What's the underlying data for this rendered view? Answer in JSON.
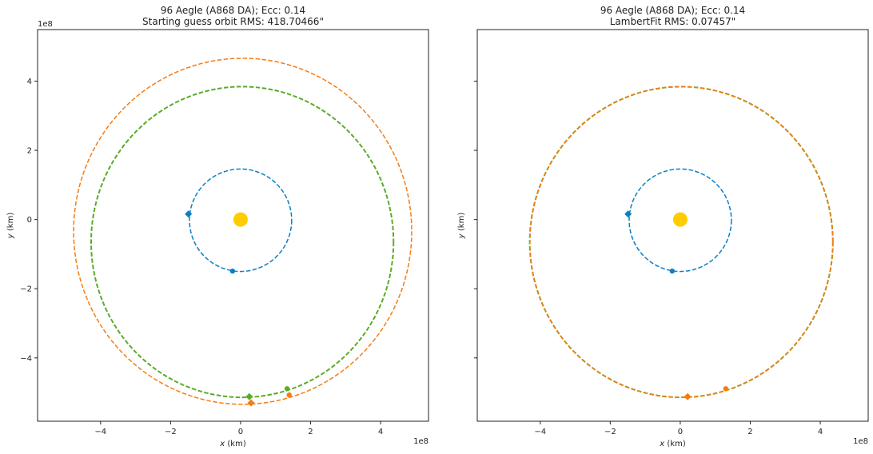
{
  "chart_data": [
    {
      "type": "scatter",
      "title_line1": "96 Aegle (A868 DA); Ecc: 0.14",
      "title_line2": "Starting guess orbit RMS: 418.70466\"",
      "xlabel": "x (km)",
      "ylabel": "y (km)",
      "x_offset_label": "1e8",
      "y_offset_label": "1e8",
      "xlim": [
        -5.8,
        5.37
      ],
      "ylim": [
        -5.83,
        5.49
      ],
      "xticks": [
        -4,
        -2,
        0,
        2,
        4
      ],
      "yticks": [
        -4,
        -2,
        0,
        2,
        4
      ],
      "xtick_labels": [
        "−4",
        "−2",
        "0",
        "2",
        "4"
      ],
      "ytick_labels": [
        "−4",
        "−2",
        "0",
        "2",
        "4"
      ],
      "show_ytick_labels": true,
      "sun": {
        "x": 0,
        "y": 0,
        "color": "#ffcc00"
      },
      "orbits": [
        {
          "name": "earth-orbit",
          "cx": 0,
          "cy": -0.02,
          "rx": 1.46,
          "ry": 1.48,
          "color": "#0a7fc2",
          "width": 1.5
        },
        {
          "name": "orbit-green",
          "cx": 0.05,
          "cy": -0.65,
          "rx": 4.32,
          "ry": 4.49,
          "color": "#5aab2a",
          "width": 2
        },
        {
          "name": "orbit-orange",
          "cx": 0.06,
          "cy": -0.34,
          "rx": 4.83,
          "ry": 5.0,
          "color": "#f77b12",
          "width": 1.5
        }
      ],
      "markers": [
        {
          "name": "earth-diamond",
          "x": -1.49,
          "y": 0.16,
          "shape": "diamond",
          "color": "#0a7fc2"
        },
        {
          "name": "earth-dot",
          "x": -0.23,
          "y": -1.49,
          "shape": "circle",
          "color": "#0a7fc2"
        },
        {
          "name": "green-diamond",
          "x": 0.25,
          "y": -5.12,
          "shape": "diamond",
          "color": "#5aab2a"
        },
        {
          "name": "green-dot",
          "x": 1.33,
          "y": -4.89,
          "shape": "circle",
          "color": "#5aab2a"
        },
        {
          "name": "orange-diamond",
          "x": 0.3,
          "y": -5.3,
          "shape": "diamond",
          "color": "#f77b12"
        },
        {
          "name": "orange-dot",
          "x": 1.39,
          "y": -5.07,
          "shape": "circle",
          "color": "#f77b12"
        }
      ]
    },
    {
      "type": "scatter",
      "title_line1": "96 Aegle (A868 DA); Ecc: 0.14",
      "title_line2": "LambertFit RMS: 0.07457\"",
      "xlabel": "x (km)",
      "ylabel": "y (km)",
      "x_offset_label": "1e8",
      "y_offset_label": "",
      "xlim": [
        -5.8,
        5.37
      ],
      "ylim": [
        -5.83,
        5.49
      ],
      "xticks": [
        -4,
        -2,
        0,
        2,
        4
      ],
      "yticks": [
        -4,
        -2,
        0,
        2,
        4
      ],
      "xtick_labels": [
        "−4",
        "−2",
        "0",
        "2",
        "4"
      ],
      "ytick_labels": [
        "",
        "",
        "",
        "",
        ""
      ],
      "show_ytick_labels": false,
      "sun": {
        "x": 0,
        "y": 0,
        "color": "#ffcc00"
      },
      "orbits": [
        {
          "name": "earth-orbit",
          "cx": 0,
          "cy": -0.02,
          "rx": 1.46,
          "ry": 1.48,
          "color": "#0a7fc2",
          "width": 1.5
        },
        {
          "name": "orbit-green",
          "cx": 0.03,
          "cy": -0.65,
          "rx": 4.33,
          "ry": 4.49,
          "color": "#5aab2a",
          "width": 2
        },
        {
          "name": "orbit-orange",
          "cx": 0.03,
          "cy": -0.65,
          "rx": 4.33,
          "ry": 4.49,
          "color": "#f77b12",
          "width": 1.5
        }
      ],
      "markers": [
        {
          "name": "earth-diamond",
          "x": -1.49,
          "y": 0.16,
          "shape": "diamond",
          "color": "#0a7fc2"
        },
        {
          "name": "earth-dot",
          "x": -0.23,
          "y": -1.49,
          "shape": "circle",
          "color": "#0a7fc2"
        },
        {
          "name": "orange-diamond",
          "x": 0.21,
          "y": -5.12,
          "shape": "diamond",
          "color": "#f77b12"
        },
        {
          "name": "orange-dot",
          "x": 1.3,
          "y": -4.89,
          "shape": "circle",
          "color": "#f77b12"
        }
      ]
    }
  ]
}
